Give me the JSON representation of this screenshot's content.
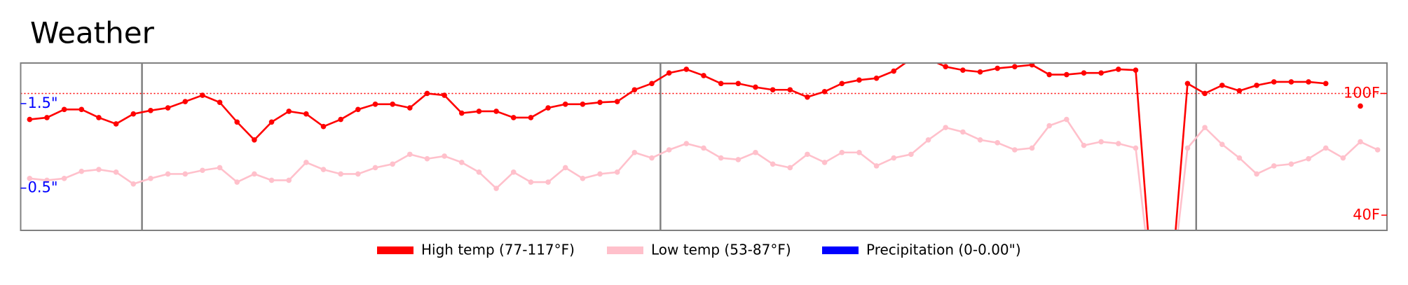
{
  "chart_data": {
    "type": "line",
    "title": "Weather",
    "x": [
      0,
      1,
      2,
      3,
      4,
      5,
      6,
      7,
      8,
      9,
      10,
      11,
      12,
      13,
      14,
      15,
      16,
      17,
      18,
      19,
      20,
      21,
      22,
      23,
      24,
      25,
      26,
      27,
      28,
      29,
      30,
      31,
      32,
      33,
      34,
      35,
      36,
      37,
      38,
      39,
      40,
      41,
      42,
      43,
      44,
      45,
      46,
      47,
      48,
      49,
      50,
      51,
      52,
      53,
      54,
      55,
      56,
      57,
      58,
      59,
      60,
      61,
      62,
      63,
      64,
      65,
      66,
      67,
      68,
      69,
      70,
      71,
      72,
      73,
      74,
      75,
      76,
      77,
      78
    ],
    "xlim": [
      -0.52,
      78.54
    ],
    "ylim": [
      32.5,
      115
    ],
    "yticks": [
      {
        "value": 100,
        "label": "100F"
      },
      {
        "value": 40,
        "label": "40F"
      }
    ],
    "y2lim": [
      0,
      1.98
    ],
    "y2ticks": [
      {
        "value": 1.5,
        "label": "1.5\""
      },
      {
        "value": 0.5,
        "label": "0.5\""
      }
    ],
    "reference_line": 100,
    "vlines": [
      6.5,
      36.5,
      67.5
    ],
    "series": [
      {
        "name": "High temp (77-117°F)",
        "color": "#ff0000",
        "values": [
          87.2,
          88.1,
          92.1,
          92.1,
          88.1,
          85,
          89.9,
          91.6,
          92.9,
          96,
          99.1,
          95.6,
          85.9,
          77.1,
          85.9,
          91.2,
          89.9,
          83.7,
          87.2,
          92.1,
          94.7,
          94.7,
          92.9,
          100,
          99.1,
          90.3,
          91.2,
          91.2,
          88.1,
          88.1,
          92.9,
          94.7,
          94.7,
          95.6,
          96,
          101.8,
          104.9,
          110.1,
          111.9,
          108.8,
          104.9,
          104.9,
          103.1,
          101.8,
          101.8,
          98.2,
          100.9,
          104.9,
          106.6,
          107.5,
          111,
          117,
          117,
          113.2,
          111.5,
          110.6,
          112.4,
          113.2,
          114.1,
          109.3,
          109.3,
          110.1,
          110.1,
          111.9,
          111.5,
          0,
          0,
          104.9,
          100,
          104,
          101.3,
          104,
          105.7,
          105.7,
          105.7,
          104.9,
          null,
          93.8,
          null
        ]
      },
      {
        "name": "Low temp (53-87°F)",
        "color": "#ffc0cb",
        "values": [
          58.1,
          57.2,
          58.1,
          61.6,
          62.5,
          61.2,
          55.4,
          58.1,
          60.3,
          60.3,
          62.1,
          63.4,
          56.3,
          60.3,
          57.2,
          57.2,
          66,
          62.5,
          60.3,
          60.3,
          63.4,
          65.2,
          70,
          67.8,
          69.1,
          66,
          61.2,
          53.2,
          61.2,
          56.3,
          56.3,
          63.4,
          58.1,
          60.3,
          61.2,
          70.9,
          68.2,
          72.2,
          75.3,
          73.1,
          68.2,
          67.4,
          70.9,
          65.2,
          63.4,
          70,
          66,
          70.9,
          70.9,
          64.3,
          68.2,
          70,
          77.1,
          83.2,
          81,
          77.1,
          75.7,
          72.2,
          73.1,
          84.1,
          87.2,
          74.4,
          76.2,
          75.3,
          73.1,
          0,
          0,
          73.1,
          83.2,
          74.9,
          68.2,
          60.3,
          64.3,
          65.2,
          67.8,
          73.1,
          68.2,
          76.2,
          72.2
        ]
      },
      {
        "name": "Precipitation (0-0.00\")",
        "color": "#0000ff",
        "axis": "y2",
        "values": [
          0,
          0,
          0,
          0,
          0,
          0,
          0,
          0,
          0,
          0,
          0,
          0,
          0,
          0,
          0,
          0,
          0,
          0,
          0,
          0,
          0,
          0,
          0,
          0,
          0,
          0,
          0,
          0,
          0,
          0,
          0,
          0,
          0,
          0,
          0,
          0,
          0,
          0,
          0,
          0,
          0,
          0,
          0,
          0,
          0,
          0,
          0,
          0,
          0,
          0,
          0,
          0,
          0,
          0,
          0,
          0,
          0,
          0,
          0,
          0,
          0,
          0,
          0,
          0,
          0,
          0,
          0,
          0,
          0,
          0,
          0,
          0,
          0,
          0,
          0,
          0,
          0,
          0,
          0
        ]
      }
    ]
  }
}
